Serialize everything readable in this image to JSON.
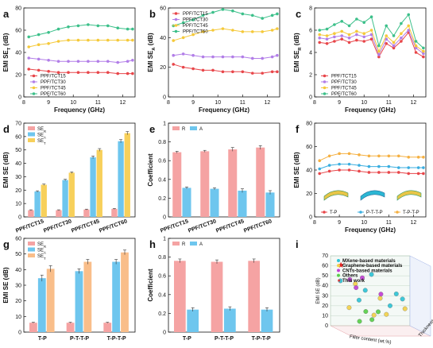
{
  "chart_data": [
    {
      "panel": "a",
      "type": "line",
      "xlabel": "Frequency (GHz)",
      "ylabel": "EMI SE_T (dB)",
      "xlim": [
        8,
        12.5
      ],
      "ylim": [
        0,
        80
      ],
      "xticks": [
        8,
        9,
        10,
        11,
        12
      ],
      "yticks": [
        0,
        20,
        40,
        60,
        80
      ],
      "legend_position": "bottom-left",
      "series": [
        {
          "name": "PPF/TCT15",
          "color": "#e8464a",
          "x": [
            8.2,
            8.6,
            9.0,
            9.4,
            9.8,
            10.2,
            10.6,
            11.0,
            11.4,
            11.8,
            12.2,
            12.4
          ],
          "y": [
            25,
            24,
            23,
            22,
            22,
            22,
            22,
            22,
            22,
            21,
            21,
            21
          ]
        },
        {
          "name": "PPF/TCT30",
          "color": "#b27ee8",
          "x": [
            8.2,
            8.6,
            9.0,
            9.4,
            9.8,
            10.2,
            10.6,
            11.0,
            11.4,
            11.8,
            12.2,
            12.4
          ],
          "y": [
            35,
            34,
            33,
            32,
            32,
            32,
            32,
            32,
            32,
            31,
            32,
            33
          ]
        },
        {
          "name": "PPF/TCT45",
          "color": "#f5c93a",
          "x": [
            8.2,
            8.6,
            9.0,
            9.4,
            9.8,
            10.2,
            10.6,
            11.0,
            11.4,
            11.8,
            12.2,
            12.4
          ],
          "y": [
            45,
            47,
            48,
            50,
            51,
            51,
            51,
            51,
            51,
            51,
            51,
            51
          ]
        },
        {
          "name": "PPF/TCT60",
          "color": "#3cc08a",
          "x": [
            8.2,
            8.6,
            9.0,
            9.4,
            9.8,
            10.2,
            10.6,
            11.0,
            11.4,
            11.8,
            12.2,
            12.4
          ],
          "y": [
            54,
            56,
            58,
            61,
            63,
            64,
            65,
            64,
            64,
            62,
            61,
            61
          ]
        }
      ]
    },
    {
      "panel": "b",
      "type": "line",
      "xlabel": "Frequency (GHz)",
      "ylabel": "EMI SE_A (dB)",
      "xlim": [
        8,
        12.5
      ],
      "ylim": [
        0,
        60
      ],
      "xticks": [
        8,
        9,
        10,
        11,
        12
      ],
      "yticks": [
        0,
        20,
        40,
        60
      ],
      "legend_position": "top-left",
      "series": [
        {
          "name": "PPF/TCT15",
          "color": "#e8464a",
          "x": [
            8.2,
            8.6,
            9.0,
            9.4,
            9.8,
            10.2,
            10.6,
            11.0,
            11.4,
            11.8,
            12.2,
            12.4
          ],
          "y": [
            22,
            20,
            19,
            18,
            18,
            17,
            17,
            17,
            16,
            16,
            17,
            17
          ]
        },
        {
          "name": "PPF/TCT30",
          "color": "#b27ee8",
          "x": [
            8.2,
            8.6,
            9.0,
            9.4,
            9.8,
            10.2,
            10.6,
            11.0,
            11.4,
            11.8,
            12.2,
            12.4
          ],
          "y": [
            28,
            29,
            28,
            27,
            27,
            27,
            27,
            27,
            26,
            26,
            27,
            28
          ]
        },
        {
          "name": "PPF/TCT45",
          "color": "#f5c93a",
          "x": [
            8.2,
            8.6,
            9.0,
            9.4,
            9.8,
            10.2,
            10.6,
            11.0,
            11.4,
            11.8,
            12.2,
            12.4
          ],
          "y": [
            38,
            40,
            42,
            44,
            45,
            46,
            45,
            44,
            44,
            44,
            45,
            46
          ]
        },
        {
          "name": "PPF/TCT60",
          "color": "#3cc08a",
          "x": [
            8.2,
            8.6,
            9.0,
            9.4,
            9.8,
            10.2,
            10.6,
            11.0,
            11.4,
            11.8,
            12.2,
            12.4
          ],
          "y": [
            48,
            50,
            52,
            55,
            57,
            59,
            58,
            56,
            55,
            53,
            55,
            56
          ]
        }
      ]
    },
    {
      "panel": "c",
      "type": "line",
      "xlabel": "Frequency (GHz)",
      "ylabel": "EMI SE_R (dB)",
      "xlim": [
        8,
        12.5
      ],
      "ylim": [
        0,
        8
      ],
      "xticks": [
        8,
        9,
        10,
        11,
        12
      ],
      "yticks": [
        0,
        2,
        4,
        6,
        8
      ],
      "legend_position": "bottom-left",
      "series": [
        {
          "name": "PPF/TCT15",
          "color": "#e8464a",
          "x": [
            8.2,
            8.5,
            8.8,
            9.1,
            9.4,
            9.7,
            10.0,
            10.3,
            10.6,
            10.9,
            11.2,
            11.5,
            11.8,
            12.1,
            12.4
          ],
          "y": [
            4.9,
            4.8,
            5.0,
            5.2,
            4.9,
            5.1,
            5.0,
            5.2,
            3.6,
            4.8,
            4.4,
            5.0,
            5.8,
            4.0,
            3.6
          ]
        },
        {
          "name": "PPF/TCT30",
          "color": "#b27ee8",
          "x": [
            8.2,
            8.5,
            8.8,
            9.1,
            9.4,
            9.7,
            10.0,
            10.3,
            10.6,
            10.9,
            11.2,
            11.5,
            11.8,
            12.1,
            12.4
          ],
          "y": [
            5.3,
            5.2,
            5.4,
            5.5,
            5.3,
            5.6,
            5.4,
            5.6,
            3.8,
            5.2,
            4.6,
            5.3,
            6.0,
            4.4,
            3.9
          ]
        },
        {
          "name": "PPF/TCT45",
          "color": "#f5c93a",
          "x": [
            8.2,
            8.5,
            8.8,
            9.1,
            9.4,
            9.7,
            10.0,
            10.3,
            10.6,
            10.9,
            11.2,
            11.5,
            11.8,
            12.1,
            12.4
          ],
          "y": [
            5.6,
            5.5,
            5.7,
            5.9,
            5.6,
            5.9,
            5.7,
            6.0,
            4.1,
            5.5,
            4.9,
            5.7,
            6.4,
            4.6,
            4.1
          ]
        },
        {
          "name": "PPF/TCT60",
          "color": "#3cc08a",
          "x": [
            8.2,
            8.5,
            8.8,
            9.1,
            9.4,
            9.7,
            10.0,
            10.3,
            10.6,
            10.9,
            11.2,
            11.5,
            11.8,
            12.1,
            12.4
          ],
          "y": [
            6.0,
            6.1,
            6.5,
            6.8,
            6.4,
            7.0,
            6.7,
            7.2,
            4.6,
            6.4,
            5.5,
            6.6,
            7.4,
            5.0,
            4.4
          ]
        }
      ]
    },
    {
      "panel": "d",
      "type": "bar",
      "ylabel": "EMI SE (dB)",
      "ylim": [
        0,
        70
      ],
      "yticks": [
        0,
        10,
        20,
        30,
        40,
        50,
        60,
        70
      ],
      "categories": [
        "PPF/TCT15",
        "PPF/TCT30",
        "PPF/TCT45",
        "PPF/TCT60"
      ],
      "legend_position": "top-left",
      "series": [
        {
          "name": "SE_R",
          "color": "#f5a3a3",
          "values": [
            5,
            5,
            5.5,
            6
          ],
          "err": [
            0.3,
            0.3,
            0.3,
            0.3
          ]
        },
        {
          "name": "SE_A",
          "color": "#6ec6ee",
          "values": [
            19,
            27.5,
            44.5,
            56.5
          ],
          "err": [
            0.5,
            0.6,
            1.0,
            1.2
          ]
        },
        {
          "name": "SE_T",
          "color": "#f7d05b",
          "values": [
            24,
            33,
            50,
            62.5
          ],
          "err": [
            0.5,
            0.6,
            1.0,
            1.2
          ]
        }
      ]
    },
    {
      "panel": "e",
      "type": "bar",
      "ylabel": "Coefficient",
      "ylim": [
        0,
        1.0
      ],
      "yticks": [
        0,
        0.2,
        0.4,
        0.6,
        0.8,
        1.0
      ],
      "categories": [
        "PPF/TCT15",
        "PPF/TCT30",
        "PPF/TCT45",
        "PPF/TCT60"
      ],
      "legend_position": "top-left",
      "series": [
        {
          "name": "R",
          "color": "#f5a3a3",
          "values": [
            0.69,
            0.7,
            0.72,
            0.74
          ],
          "err": [
            0.01,
            0.01,
            0.02,
            0.02
          ]
        },
        {
          "name": "A",
          "color": "#6ec6ee",
          "values": [
            0.31,
            0.3,
            0.28,
            0.26
          ],
          "err": [
            0.01,
            0.01,
            0.02,
            0.02
          ]
        }
      ]
    },
    {
      "panel": "f",
      "type": "line",
      "xlabel": "Frequency (GHz)",
      "ylabel": "EMI SE (dB)",
      "xlim": [
        8,
        12.5
      ],
      "ylim": [
        0,
        80
      ],
      "xticks": [
        8,
        9,
        10,
        11,
        12
      ],
      "yticks": [
        0,
        20,
        40,
        60,
        80
      ],
      "legend_position": "bottom",
      "series": [
        {
          "name": "T-P",
          "color": "#e8464a",
          "x": [
            8.2,
            8.6,
            9.0,
            9.4,
            9.8,
            10.2,
            10.6,
            11.0,
            11.4,
            11.8,
            12.2,
            12.4
          ],
          "y": [
            37,
            39,
            40,
            40,
            39,
            38,
            38,
            38,
            38,
            37,
            37,
            37
          ]
        },
        {
          "name": "P-T-T-P",
          "color": "#3aaee0",
          "x": [
            8.2,
            8.6,
            9.0,
            9.4,
            9.8,
            10.2,
            10.6,
            11.0,
            11.4,
            11.8,
            12.2,
            12.4
          ],
          "y": [
            41,
            44,
            45,
            45,
            44,
            43,
            43,
            43,
            42,
            42,
            42,
            42
          ]
        },
        {
          "name": "T-P-T-P",
          "color": "#f5b041",
          "x": [
            8.2,
            8.6,
            9.0,
            9.4,
            9.8,
            10.2,
            10.6,
            11.0,
            11.4,
            11.8,
            12.2,
            12.4
          ],
          "y": [
            48,
            52,
            54,
            54,
            53,
            52,
            52,
            52,
            52,
            51,
            51,
            51
          ]
        }
      ]
    },
    {
      "panel": "g",
      "type": "bar",
      "ylabel": "EMI SE (dB)",
      "ylim": [
        0,
        60
      ],
      "yticks": [
        0,
        10,
        20,
        30,
        40,
        50,
        60
      ],
      "categories": [
        "T-P",
        "P-T-T-P",
        "T-P-T-P"
      ],
      "legend_position": "top-left",
      "series": [
        {
          "name": "SE_R",
          "color": "#f5a3a3",
          "values": [
            6,
            6,
            6
          ],
          "err": [
            0.3,
            0.3,
            0.3
          ]
        },
        {
          "name": "SE_A",
          "color": "#6ec6ee",
          "values": [
            34.5,
            39,
            45
          ],
          "err": [
            2.0,
            1.5,
            1.5
          ]
        },
        {
          "name": "SE_T",
          "color": "#f9be8a",
          "values": [
            40.5,
            45,
            51
          ],
          "err": [
            2.0,
            1.5,
            1.5
          ]
        }
      ]
    },
    {
      "panel": "h",
      "type": "bar",
      "ylabel": "Coefficient",
      "ylim": [
        0,
        1.0
      ],
      "yticks": [
        0,
        0.2,
        0.4,
        0.6,
        0.8,
        1.0
      ],
      "categories": [
        "T-P",
        "P-T-T-P",
        "T-P-T-P"
      ],
      "legend_position": "top-left",
      "series": [
        {
          "name": "R",
          "color": "#f5a3a3",
          "values": [
            0.76,
            0.75,
            0.76
          ],
          "err": [
            0.02,
            0.02,
            0.02
          ]
        },
        {
          "name": "A",
          "color": "#6ec6ee",
          "values": [
            0.24,
            0.25,
            0.24
          ],
          "err": [
            0.02,
            0.02,
            0.02
          ]
        }
      ]
    },
    {
      "panel": "i",
      "type": "scatter",
      "xlabel": "Filler content (wt.%)",
      "ylabel": "EMI SE (dB)",
      "zlabel": "Thickness",
      "yticks": [
        0,
        10,
        20,
        30,
        40,
        50,
        60,
        70
      ],
      "legend_position": "top-left",
      "series": [
        {
          "name": "MXene-based materials",
          "color": "#2fc4d6",
          "values": [
            [
              10,
              45
            ],
            [
              20,
              30
            ],
            [
              30,
              38
            ],
            [
              40,
              52
            ],
            [
              50,
              25
            ],
            [
              60,
              35
            ],
            [
              70,
              28
            ]
          ]
        },
        {
          "name": "Graphene-based materials",
          "color": "#f2d14a",
          "values": [
            [
              15,
              20
            ],
            [
              25,
              42
            ],
            [
              35,
              15
            ],
            [
              45,
              30
            ],
            [
              55,
              12
            ],
            [
              65,
              22
            ]
          ]
        },
        {
          "name": "CNTs-based materials",
          "color": "#c23fd4",
          "values": [
            [
              12,
              50
            ],
            [
              22,
              40
            ],
            [
              32,
              48
            ],
            [
              42,
              36
            ]
          ]
        },
        {
          "name": "Others",
          "color": "#59cf4a",
          "values": [
            [
              18,
              10
            ],
            [
              28,
              18
            ],
            [
              38,
              8
            ],
            [
              48,
              14
            ]
          ]
        },
        {
          "name": "This work",
          "color": "#e02020",
          "values": [
            [
              8,
              62
            ]
          ]
        }
      ]
    }
  ],
  "panel_labels": [
    "a",
    "b",
    "c",
    "d",
    "e",
    "f",
    "g",
    "h",
    "i"
  ]
}
